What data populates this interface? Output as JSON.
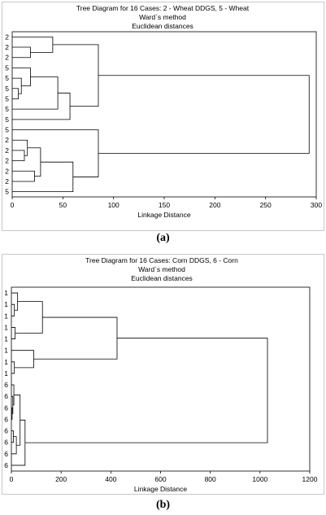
{
  "chart_data": [
    {
      "type": "dendrogram",
      "title": "Tree Diagram for 16 Cases: 2 - Wheat DDGS, 5 - Wheat",
      "subtitle": "Ward`s method",
      "subtitle2": "Euclidean distances",
      "xlabel": "Linkage Distance",
      "xlim": [
        0,
        300
      ],
      "xticks": [
        0,
        50,
        100,
        150,
        200,
        250,
        300
      ],
      "leaves": [
        "2",
        "2",
        "2",
        "5",
        "5",
        "5",
        "5",
        "5",
        "5",
        "5",
        "2",
        "2",
        "2",
        "2",
        "2",
        "5"
      ],
      "merges": [
        {
          "a": {
            "leaf": 5
          },
          "b": {
            "leaf": 6
          },
          "d": 6
        },
        {
          "a": {
            "leaf": 4
          },
          "b": {
            "node": 0
          },
          "d": 9
        },
        {
          "a": {
            "leaf": 11
          },
          "b": {
            "leaf": 12
          },
          "d": 12
        },
        {
          "a": {
            "leaf": 10
          },
          "b": {
            "node": 2
          },
          "d": 15
        },
        {
          "a": {
            "leaf": 3
          },
          "b": {
            "node": 1
          },
          "d": 18
        },
        {
          "a": {
            "leaf": 13
          },
          "b": {
            "leaf": 14
          },
          "d": 22
        },
        {
          "a": {
            "node": 3
          },
          "b": {
            "node": 5
          },
          "d": 28
        },
        {
          "a": {
            "node": 4
          },
          "b": {
            "leaf": 7
          },
          "d": 45
        },
        {
          "a": {
            "leaf": 1
          },
          "b": {
            "leaf": 2
          },
          "d": 18
        },
        {
          "a": {
            "leaf": 0
          },
          "b": {
            "node": 8
          },
          "d": 40
        },
        {
          "a": {
            "node": 7
          },
          "b": {
            "leaf": 8
          },
          "d": 57
        },
        {
          "a": {
            "node": 9
          },
          "b": {
            "node": 10
          },
          "d": 85
        },
        {
          "a": {
            "node": 6
          },
          "b": {
            "leaf": 15
          },
          "d": 60
        },
        {
          "a": {
            "node": 12
          },
          "b": {
            "leaf": 9
          },
          "d": 85
        },
        {
          "a": {
            "node": 11
          },
          "b": {
            "node": 13
          },
          "d": 293
        }
      ]
    },
    {
      "type": "dendrogram",
      "title": "Tree Diagram for 16 Cases: Corn DDGS, 6 - Corn",
      "subtitle": "Ward`s method",
      "subtitle2": "Euclidean distances",
      "xlabel": "Linkage Distance",
      "xlim": [
        0,
        1200
      ],
      "xticks": [
        0,
        200,
        400,
        600,
        800,
        1000,
        1200
      ],
      "leaves": [
        "1",
        "1",
        "1",
        "1",
        "1",
        "1",
        "1",
        "1",
        "6",
        "6",
        "6",
        "6",
        "6",
        "6",
        "6",
        "6"
      ],
      "merges": [
        {
          "a": {
            "leaf": 1
          },
          "b": {
            "leaf": 2
          },
          "d": 12
        },
        {
          "a": {
            "leaf": 0
          },
          "b": {
            "node": 0
          },
          "d": 25
        },
        {
          "a": {
            "leaf": 3
          },
          "b": {
            "leaf": 4
          },
          "d": 15
        },
        {
          "a": {
            "node": 1
          },
          "b": {
            "node": 2
          },
          "d": 125
        },
        {
          "a": {
            "leaf": 6
          },
          "b": {
            "leaf": 7
          },
          "d": 12
        },
        {
          "a": {
            "leaf": 5
          },
          "b": {
            "node": 4
          },
          "d": 90
        },
        {
          "a": {
            "node": 3
          },
          "b": {
            "node": 5
          },
          "d": 425
        },
        {
          "a": {
            "leaf": 10
          },
          "b": {
            "leaf": 11
          },
          "d": 3
        },
        {
          "a": {
            "leaf": 9
          },
          "b": {
            "node": 7
          },
          "d": 6
        },
        {
          "a": {
            "leaf": 8
          },
          "b": {
            "node": 8
          },
          "d": 10
        },
        {
          "a": {
            "leaf": 12
          },
          "b": {
            "leaf": 13
          },
          "d": 8
        },
        {
          "a": {
            "node": 10
          },
          "b": {
            "leaf": 14
          },
          "d": 20
        },
        {
          "a": {
            "node": 9
          },
          "b": {
            "node": 11
          },
          "d": 35
        },
        {
          "a": {
            "node": 12
          },
          "b": {
            "leaf": 15
          },
          "d": 55
        },
        {
          "a": {
            "node": 6
          },
          "b": {
            "node": 13
          },
          "d": 1030
        }
      ]
    }
  ],
  "captions": [
    "(a)",
    "(b)"
  ]
}
